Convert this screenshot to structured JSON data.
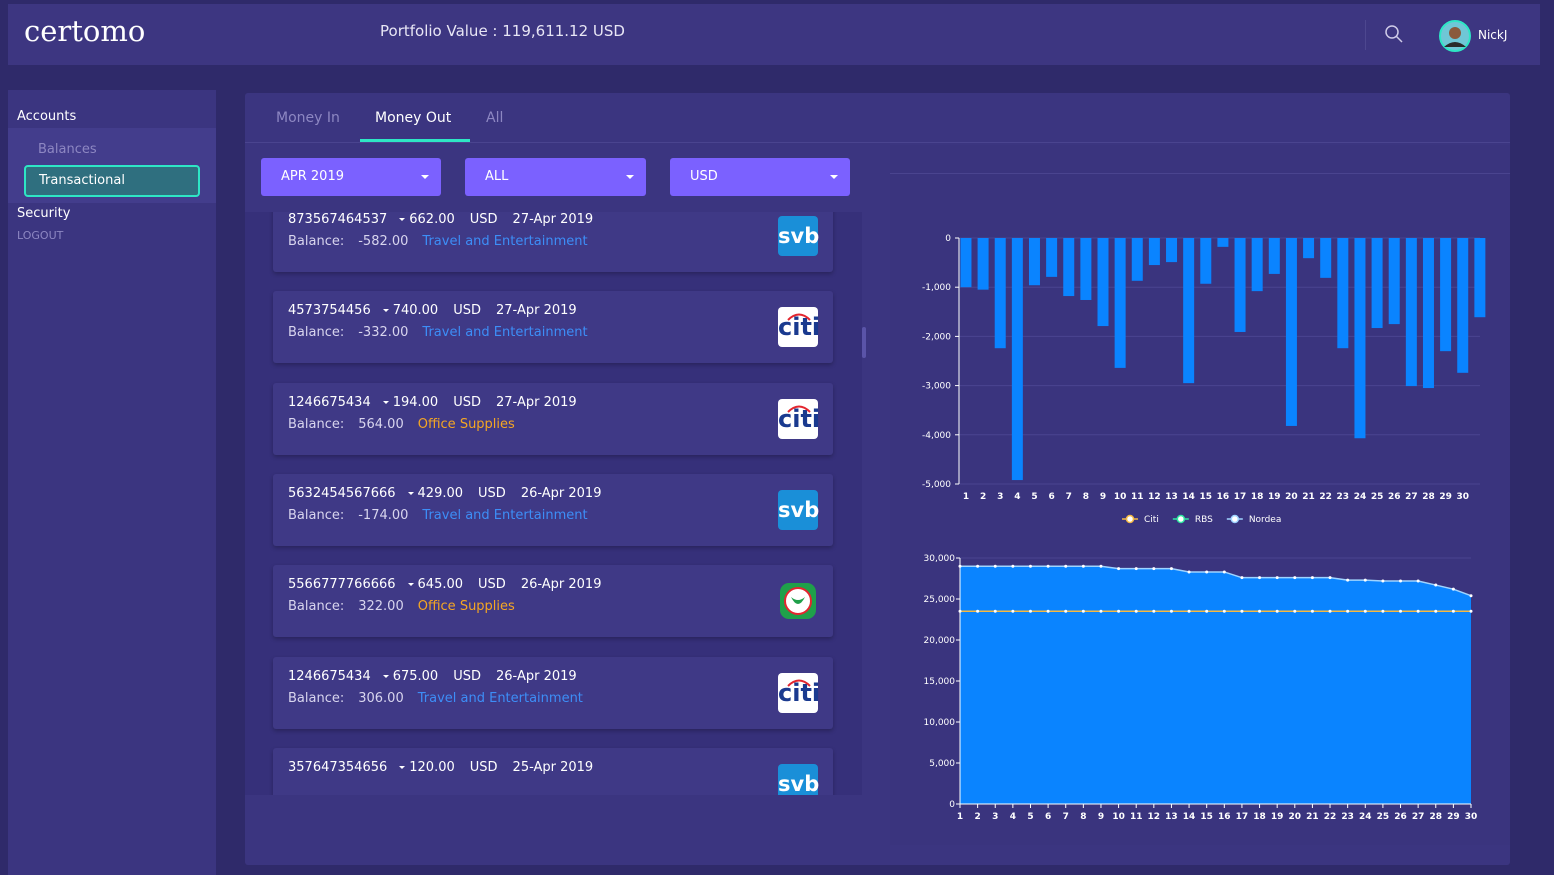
{
  "header": {
    "logo": "certomo",
    "portfolio": "Portfolio Value : 119,611.12 USD",
    "user": "NickJ"
  },
  "sidebar": {
    "items": [
      "Accounts",
      "Balances",
      "Transactional",
      "Security",
      "LOGOUT"
    ]
  },
  "tabs": [
    "Money In",
    "Money Out",
    "All"
  ],
  "filters": [
    "APR 2019",
    "ALL",
    "USD"
  ],
  "balance_label": "Balance:",
  "transactions": [
    {
      "account": "873567464537",
      "amount": "662.00",
      "currency": "USD",
      "date": "27-Apr 2019",
      "balance": "-582.00",
      "category": "Travel and Entertainment",
      "category_color": "#3d8ef7",
      "bank": "svb"
    },
    {
      "account": "4573754456",
      "amount": "740.00",
      "currency": "USD",
      "date": "27-Apr 2019",
      "balance": "-332.00",
      "category": "Travel and Entertainment",
      "category_color": "#3d8ef7",
      "bank": "citi"
    },
    {
      "account": "1246675434",
      "amount": "194.00",
      "currency": "USD",
      "date": "27-Apr 2019",
      "balance": "564.00",
      "category": "Office Supplies",
      "category_color": "#f5a623",
      "bank": "citi"
    },
    {
      "account": "5632454567666",
      "amount": "429.00",
      "currency": "USD",
      "date": "26-Apr 2019",
      "balance": "-174.00",
      "category": "Travel and Entertainment",
      "category_color": "#3d8ef7",
      "bank": "svb"
    },
    {
      "account": "5566777766666",
      "amount": "645.00",
      "currency": "USD",
      "date": "26-Apr 2019",
      "balance": "322.00",
      "category": "Office Supplies",
      "category_color": "#f5a623"
    },
    {
      "account": "1246675434",
      "amount": "675.00",
      "currency": "USD",
      "date": "26-Apr 2019",
      "balance": "306.00",
      "category": "Travel and Entertainment",
      "category_color": "#3d8ef7",
      "bank": "citi"
    },
    {
      "account": "357647354656",
      "amount": "120.00",
      "currency": "USD",
      "date": "25-Apr 2019",
      "bank": "svb"
    }
  ],
  "chart_data": [
    {
      "type": "bar",
      "color": "#0a84ff",
      "categories": [
        "1",
        "2",
        "3",
        "4",
        "5",
        "6",
        "7",
        "8",
        "9",
        "10",
        "11",
        "12",
        "13",
        "14",
        "15",
        "16",
        "17",
        "18",
        "19",
        "20",
        "21",
        "22",
        "23",
        "24",
        "25",
        "26",
        "27",
        "28",
        "29",
        "30",
        null
      ],
      "values": [
        -1000,
        -1050,
        -2240,
        -4920,
        -960,
        -790,
        -1180,
        -1260,
        -1790,
        -2640,
        -870,
        -550,
        -490,
        -2950,
        -930,
        -180,
        -1910,
        -1080,
        -730,
        -3820,
        -410,
        -810,
        -2240,
        -4070,
        -1830,
        -1750,
        -3010,
        -3050,
        -2300,
        -2740,
        -1610
      ],
      "ylim": [
        -5000,
        0
      ],
      "yticks": [
        0,
        {
          "value": -1000,
          "label": "-1,000"
        },
        {
          "value": -2000,
          "label": "-2,000"
        },
        {
          "value": -3000,
          "label": "-3,000"
        },
        {
          "value": -4000,
          "label": "-4,000"
        },
        {
          "value": -5000,
          "label": "-5,000"
        }
      ],
      "grid": true
    },
    {
      "type": "area",
      "x": [
        1,
        2,
        3,
        4,
        5,
        6,
        7,
        8,
        9,
        10,
        11,
        12,
        13,
        14,
        15,
        16,
        17,
        18,
        19,
        20,
        21,
        22,
        23,
        24,
        25,
        26,
        27,
        28,
        29,
        30
      ],
      "series": [
        {
          "name": "Citi",
          "color": "#f5b942",
          "values": [
            23500,
            23500,
            23500,
            23500,
            23500,
            23500,
            23500,
            23500,
            23500,
            23500,
            23500,
            23500,
            23500,
            23500,
            23500,
            23500,
            23500,
            23500,
            23500,
            23500,
            23500,
            23500,
            23500,
            23500,
            23500,
            23500,
            23500,
            23500,
            23500,
            23500
          ]
        },
        {
          "name": "RBS",
          "color": "#2ee6a0"
        },
        {
          "name": "Nordea",
          "color": "#9fd4ff",
          "fill": "#0a84ff",
          "values": [
            29000,
            29000,
            29000,
            29000,
            29000,
            29000,
            29000,
            29000,
            29000,
            28700,
            28700,
            28700,
            28700,
            28300,
            28300,
            28300,
            27600,
            27600,
            27600,
            27600,
            27600,
            27600,
            27300,
            27300,
            27200,
            27200,
            27200,
            26700,
            26200,
            25400
          ]
        }
      ],
      "xlim": [
        1,
        30
      ],
      "xticks": [
        1,
        2,
        3,
        4,
        5,
        6,
        7,
        8,
        9,
        10,
        11,
        12,
        13,
        14,
        15,
        16,
        17,
        18,
        19,
        20,
        21,
        22,
        23,
        24,
        25,
        26,
        27,
        28,
        29,
        30
      ],
      "ylim": [
        0,
        30000
      ],
      "yticks": [
        0,
        {
          "value": 5000,
          "label": "5,000"
        },
        {
          "value": 10000,
          "label": "10,000"
        },
        {
          "value": 15000,
          "label": "15,000"
        },
        {
          "value": 20000,
          "label": "20,000"
        },
        {
          "value": 25000,
          "label": "25,000"
        },
        {
          "value": 30000,
          "label": "30,000"
        }
      ],
      "grid": true,
      "legend": "top"
    }
  ]
}
